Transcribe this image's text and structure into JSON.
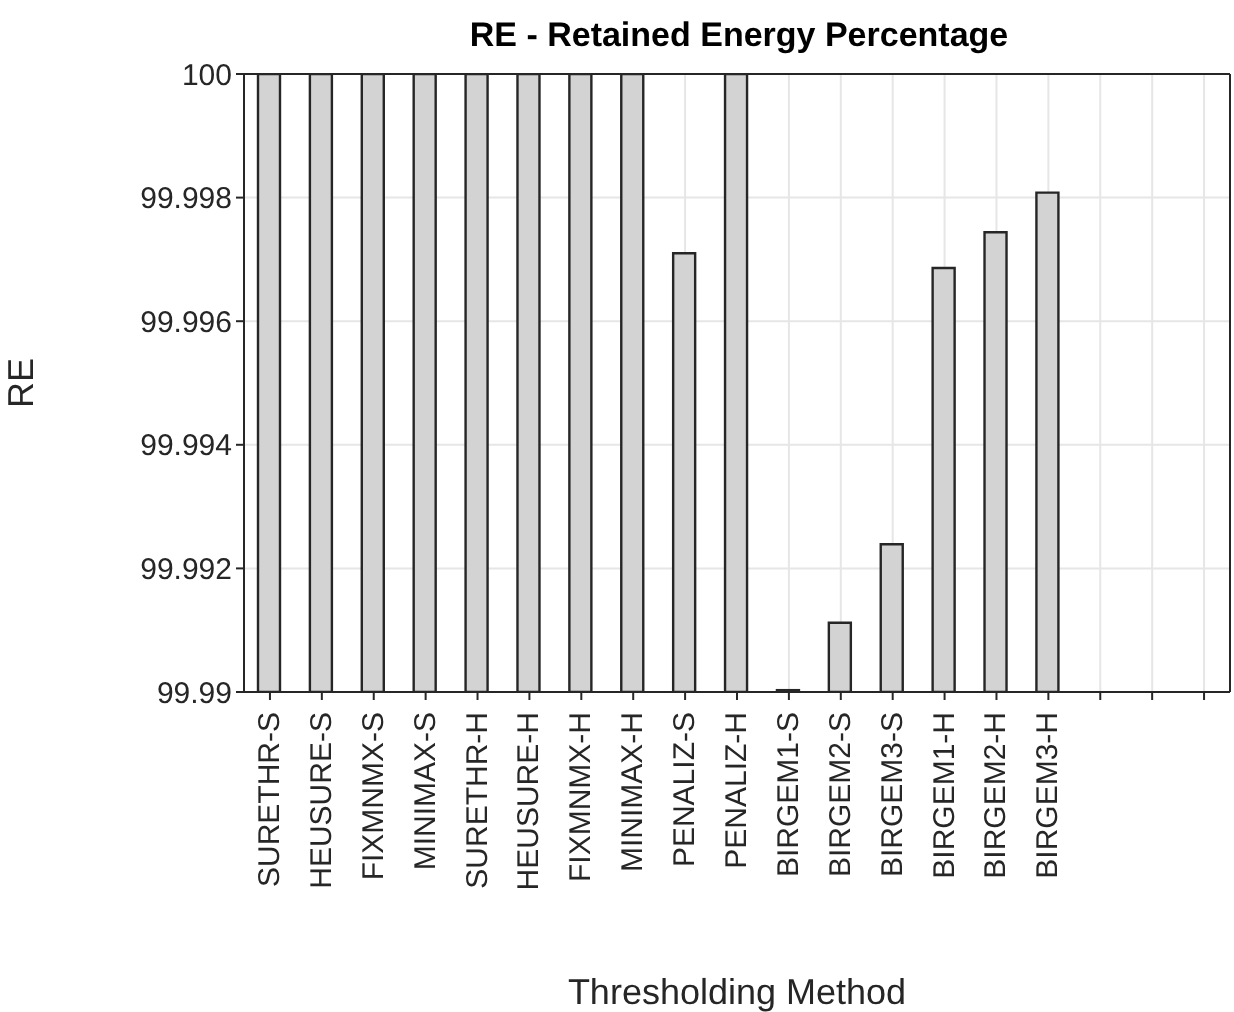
{
  "chart_data": {
    "type": "bar",
    "title": "RE - Retained Energy Percentage",
    "xlabel": "Thresholding Method",
    "ylabel": "RE",
    "categories": [
      "SURETHR-S",
      "HEUSURE-S",
      "FIXMNMX-S",
      "MINIMAX-S",
      "SURETHR-H",
      "HEUSURE-H",
      "FIXMNMX-H",
      "MINIMAX-H",
      "PENALIZ-S",
      "PENALIZ-H",
      "BIRGEM1-S",
      "BIRGEM2-S",
      "BIRGEM3-S",
      "BIRGEM1-H",
      "BIRGEM2-H",
      "BIRGEM3-H",
      null,
      null,
      null
    ],
    "values": [
      100,
      100,
      100,
      100,
      100,
      100,
      100,
      100,
      99.9971,
      100,
      99.99003,
      99.99112,
      99.99239,
      99.99686,
      99.99744,
      99.99808,
      null,
      null,
      null
    ],
    "color": "#d3d3d3",
    "ylim": [
      99.99,
      100
    ],
    "yticks": [
      99.99,
      99.992,
      99.994,
      99.996,
      99.998,
      100
    ],
    "grid": true
  }
}
